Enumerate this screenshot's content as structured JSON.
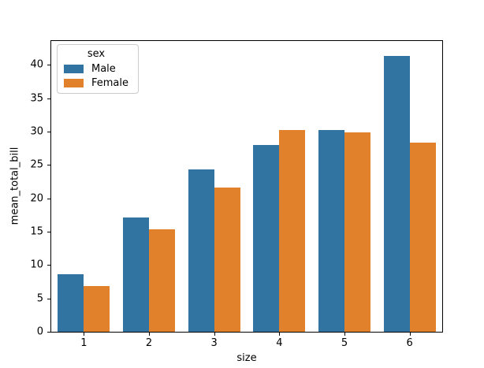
{
  "chart_data": {
    "type": "bar",
    "title": "",
    "xlabel": "size",
    "ylabel": "mean_total_bill",
    "categories": [
      "1",
      "2",
      "3",
      "4",
      "5",
      "6"
    ],
    "series": [
      {
        "name": "Male",
        "color": "#3274a1",
        "values": [
          8.6,
          17.1,
          24.3,
          28.0,
          30.2,
          41.3
        ]
      },
      {
        "name": "Female",
        "color": "#e1812c",
        "values": [
          6.8,
          15.4,
          21.6,
          30.2,
          29.9,
          28.4
        ]
      }
    ],
    "legend": {
      "title": "sex",
      "position": "upper left"
    },
    "y_ticks": [
      0,
      5,
      10,
      15,
      20,
      25,
      30,
      35,
      40
    ],
    "ylim": [
      0,
      43.6
    ],
    "grid": false,
    "bar_group_width_fraction": 0.8
  }
}
